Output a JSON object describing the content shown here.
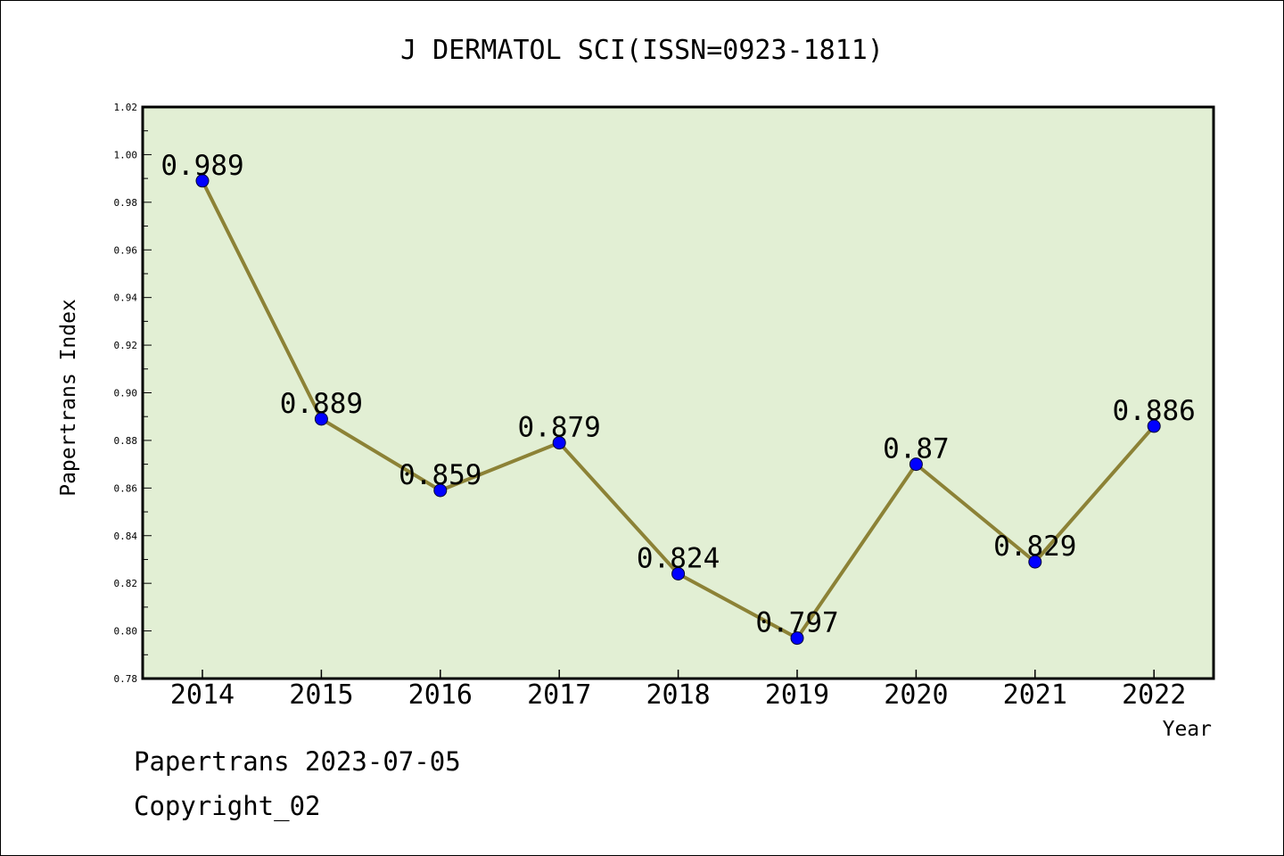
{
  "chart_data": {
    "type": "line",
    "title": "J DERMATOL SCI(ISSN=0923-1811)",
    "xlabel": "Year",
    "ylabel": "Papertrans Index",
    "categories": [
      "2014",
      "2015",
      "2016",
      "2017",
      "2018",
      "2019",
      "2020",
      "2021",
      "2022"
    ],
    "values": [
      0.989,
      0.889,
      0.859,
      0.879,
      0.824,
      0.797,
      0.87,
      0.829,
      0.886
    ],
    "data_labels": [
      "0.989",
      "0.889",
      "0.859",
      "0.879",
      "0.824",
      "0.797",
      "0.87",
      "0.829",
      "0.886"
    ],
    "ylim": [
      0.78,
      1.02
    ],
    "yticks": [
      "0.78",
      "0.80",
      "0.82",
      "0.84",
      "0.86",
      "0.88",
      "0.90",
      "0.92",
      "0.94",
      "0.96",
      "0.98",
      "1.00",
      "1.02"
    ],
    "grid": false,
    "legend": "none",
    "colors": {
      "plot_background": "#e2efd4",
      "line": "#8c8236",
      "marker": "#0000ff",
      "axis": "#000000"
    }
  },
  "footer": {
    "line1": "Papertrans 2023-07-05",
    "line2": "Copyright_02"
  }
}
